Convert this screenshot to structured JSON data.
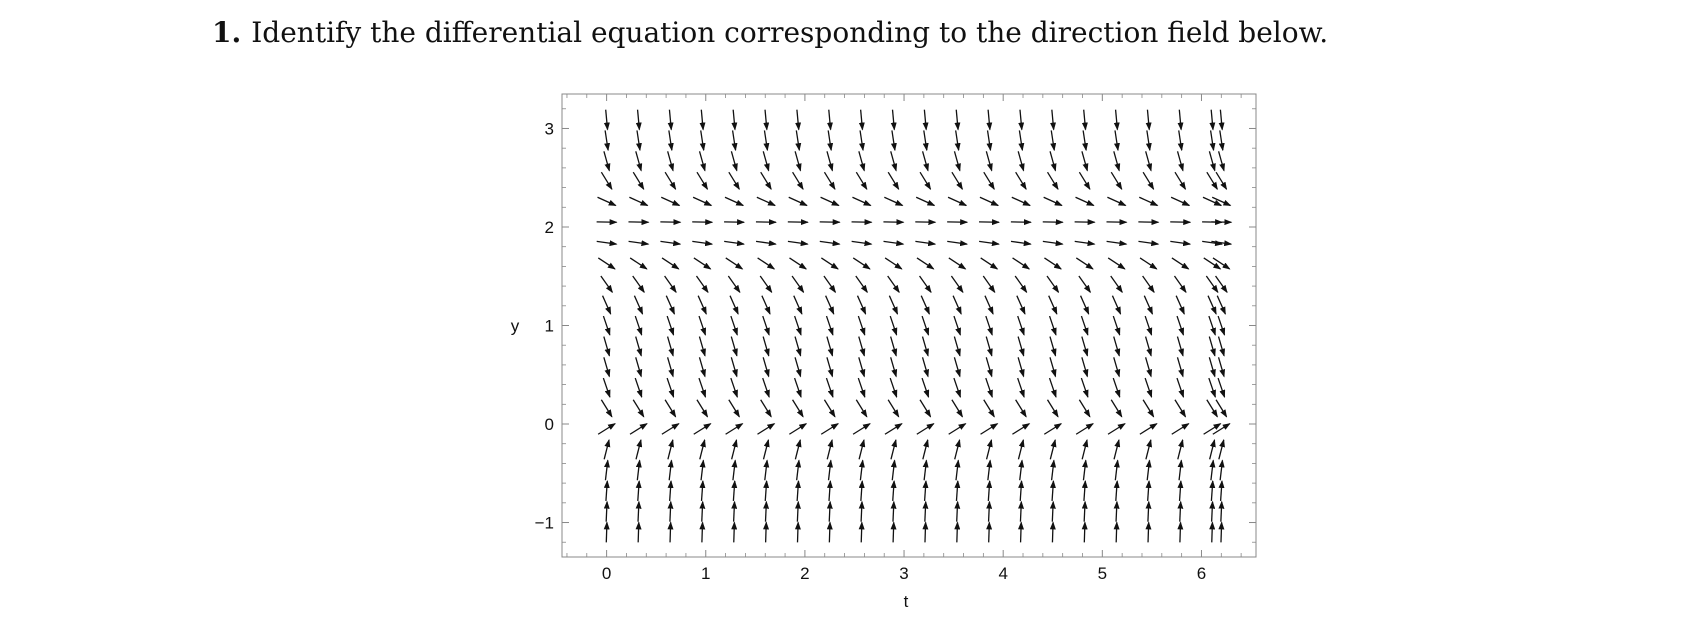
{
  "question": {
    "number": "1.",
    "text": "Identify the differential equation corresponding to the direction field below."
  },
  "chart_data": {
    "type": "scatter",
    "xlabel": "t",
    "ylabel": "y",
    "xlim": [
      -0.45,
      6.55
    ],
    "ylim": [
      -1.35,
      3.35
    ],
    "xticks": [
      0,
      1,
      2,
      3,
      4,
      5,
      6
    ],
    "yticks": [
      -1,
      0,
      1,
      2,
      3
    ],
    "ytick_labels": [
      "−1",
      "0",
      "1",
      "2",
      "3"
    ],
    "grid": false,
    "arrow_color": "#111111",
    "frame_color": "#888888",
    "field_rows_y": [
      3.09,
      2.88,
      2.67,
      2.47,
      2.26,
      2.05,
      1.84,
      1.63,
      1.42,
      1.21,
      1.0,
      0.79,
      0.58,
      0.37,
      0.16,
      -0.05,
      -0.26,
      -0.47,
      -0.68,
      -0.89,
      -1.1
    ],
    "field_cols_t": [
      0,
      0.3214,
      0.6429,
      0.9643,
      1.2857,
      1.6071,
      1.9286,
      2.25,
      2.5714,
      2.8929,
      3.2143,
      3.5357,
      3.8571,
      4.1786,
      4.5,
      4.8214,
      5.1429,
      5.4643,
      5.7857,
      6.1071,
      6.2
    ]
  }
}
